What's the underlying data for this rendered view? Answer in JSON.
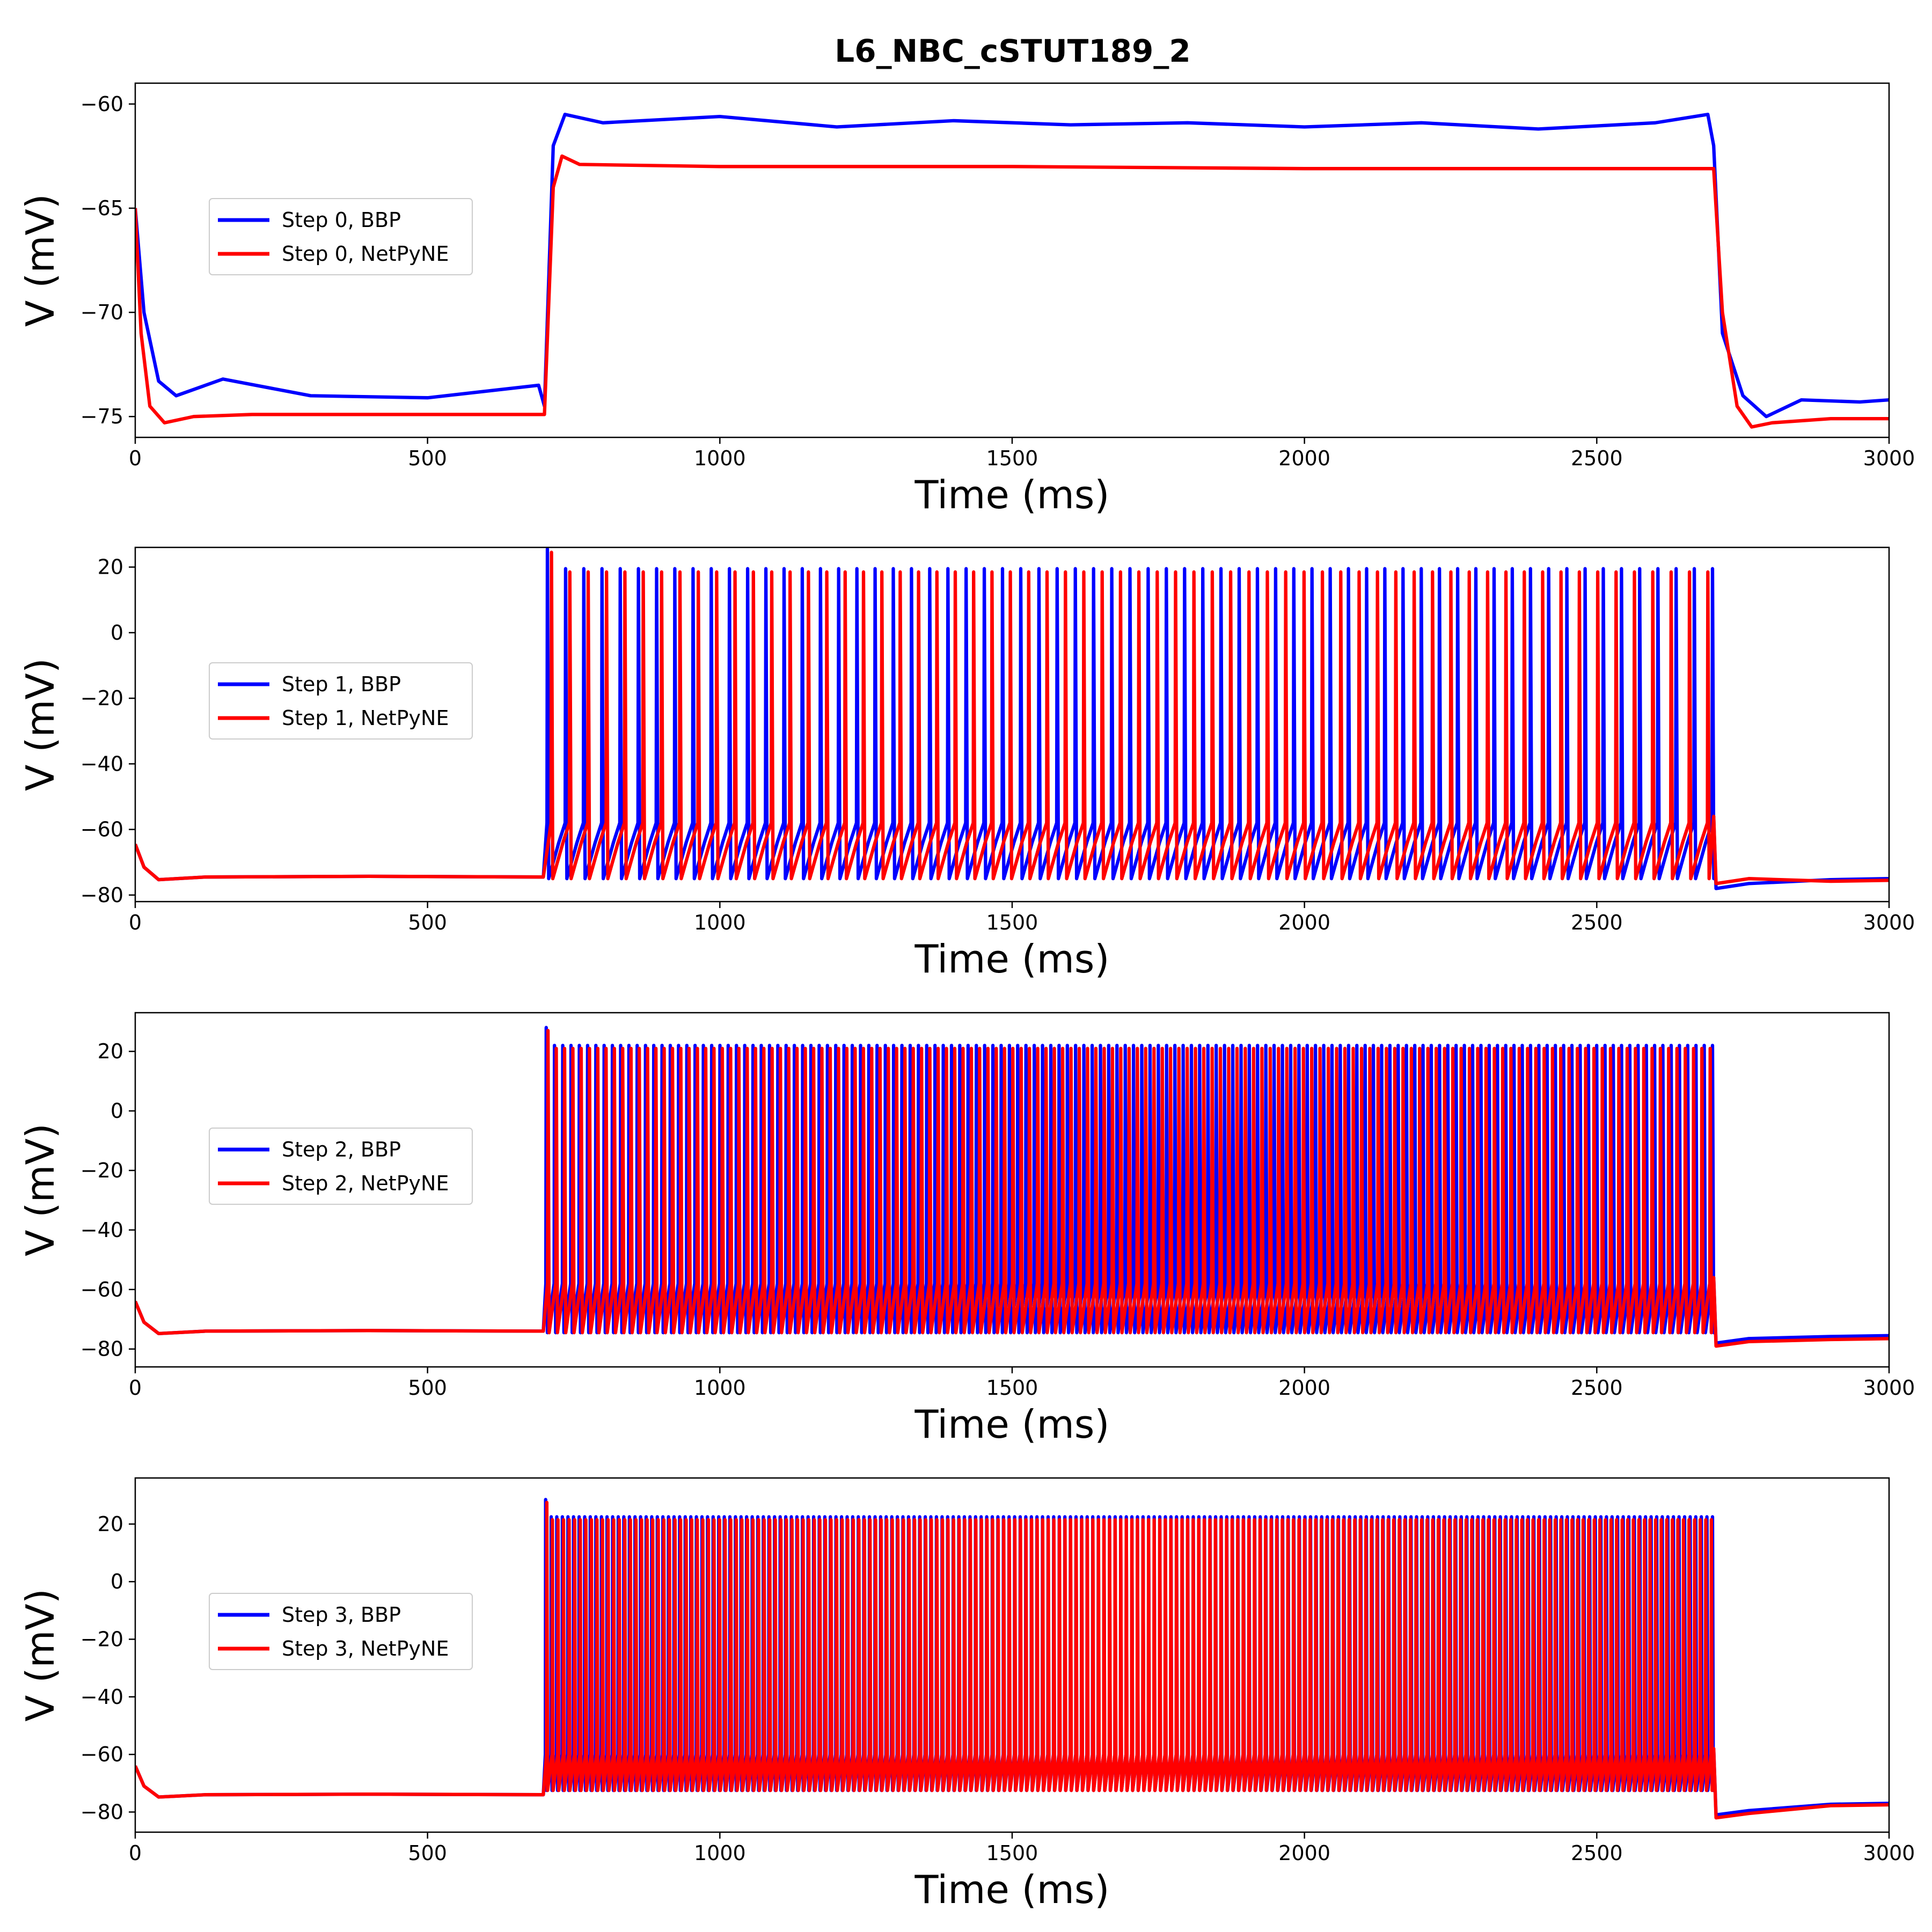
{
  "figure": {
    "title": "L6_NBC_cSTUT189_2"
  },
  "colors": {
    "bbp": "#0000ff",
    "netpyne": "#ff0000"
  },
  "chart_data": [
    {
      "type": "line",
      "xlabel": "Time (ms)",
      "ylabel": "V (mV)",
      "xlim": [
        0,
        3000
      ],
      "ylim": [
        -76,
        -59
      ],
      "xticks": [
        0,
        500,
        1000,
        1500,
        2000,
        2500,
        3000
      ],
      "yticks": [
        -75,
        -70,
        -65,
        -60
      ],
      "legend_position": "center-left",
      "series": [
        {
          "name": "Step 0, BBP",
          "color": "#0000ff",
          "linewidth": 3,
          "x": [
            0,
            15,
            40,
            70,
            150,
            300,
            500,
            690,
            700,
            715,
            735,
            800,
            1000,
            1200,
            1400,
            1600,
            1800,
            2000,
            2200,
            2400,
            2600,
            2690,
            2700,
            2715,
            2750,
            2790,
            2850,
            2950,
            3000
          ],
          "y": [
            -65,
            -70,
            -73.3,
            -74,
            -73.2,
            -74,
            -74.1,
            -73.5,
            -74.5,
            -62,
            -60.5,
            -60.9,
            -60.6,
            -61.1,
            -60.8,
            -61.0,
            -60.9,
            -61.1,
            -60.9,
            -61.2,
            -60.9,
            -60.5,
            -62,
            -71,
            -74,
            -75,
            -74.2,
            -74.3,
            -74.2
          ]
        },
        {
          "name": "Step 0, NetPyNE",
          "color": "#ff0000",
          "linewidth": 3,
          "x": [
            0,
            10,
            25,
            50,
            100,
            200,
            400,
            698,
            700,
            715,
            730,
            760,
            1000,
            1500,
            2000,
            2500,
            2698,
            2700,
            2715,
            2740,
            2765,
            2800,
            2900,
            3000
          ],
          "y": [
            -65,
            -71,
            -74.5,
            -75.3,
            -75.0,
            -74.9,
            -74.9,
            -74.9,
            -74.9,
            -64,
            -62.5,
            -62.9,
            -63.0,
            -63.0,
            -63.1,
            -63.1,
            -63.1,
            -63.1,
            -70,
            -74.5,
            -75.5,
            -75.3,
            -75.1,
            -75.1
          ]
        }
      ],
      "spiking": null
    },
    {
      "type": "line",
      "xlabel": "Time (ms)",
      "ylabel": "V (mV)",
      "xlim": [
        0,
        3000
      ],
      "ylim": [
        -82,
        26
      ],
      "xticks": [
        0,
        500,
        1000,
        1500,
        2000,
        2500,
        3000
      ],
      "yticks": [
        -80,
        -60,
        -40,
        -20,
        0,
        20
      ],
      "legend_position": "center-left",
      "series": [
        {
          "name": "Step 1, BBP",
          "color": "#0000ff",
          "linewidth": 3
        },
        {
          "name": "Step 1, NetPyNE",
          "color": "#ff0000",
          "linewidth": 3
        }
      ],
      "spiking": {
        "onset": 700,
        "offset": 2700,
        "rest": -74.5,
        "trough": -75,
        "reset": -58,
        "peak": 20,
        "bbp": {
          "count": 65,
          "first": 705,
          "last": 2698,
          "peak": 19.5,
          "after": -78,
          "end": -75
        },
        "netpyne": {
          "count": 64,
          "first": 712,
          "last": 2690,
          "peak": 18.5,
          "after": -76.5,
          "end": -75.5
        }
      }
    },
    {
      "type": "line",
      "xlabel": "Time (ms)",
      "ylabel": "V (mV)",
      "xlim": [
        0,
        3000
      ],
      "ylim": [
        -86,
        33
      ],
      "xticks": [
        0,
        500,
        1000,
        1500,
        2000,
        2500,
        3000
      ],
      "yticks": [
        -80,
        -60,
        -40,
        -20,
        0,
        20
      ],
      "legend_position": "center-left",
      "series": [
        {
          "name": "Step 2, BBP",
          "color": "#0000ff",
          "linewidth": 3
        },
        {
          "name": "Step 2, NetPyNE",
          "color": "#ff0000",
          "linewidth": 3
        }
      ],
      "spiking": {
        "onset": 700,
        "offset": 2700,
        "rest": -74,
        "trough": -74.5,
        "reset": -58,
        "peak": 22,
        "bbp": {
          "count": 142,
          "first": 703,
          "last": 2698,
          "peak": 22,
          "after": -78,
          "end": -75.5
        },
        "netpyne": {
          "count": 141,
          "first": 706,
          "last": 2694,
          "peak": 21,
          "after": -79,
          "end": -76.5
        }
      }
    },
    {
      "type": "line",
      "xlabel": "Time (ms)",
      "ylabel": "V (mV)",
      "xlim": [
        0,
        3000
      ],
      "ylim": [
        -87,
        36
      ],
      "xticks": [
        0,
        500,
        1000,
        1500,
        2000,
        2500,
        3000
      ],
      "yticks": [
        -80,
        -60,
        -40,
        -20,
        0,
        20
      ],
      "legend_position": "center-left",
      "series": [
        {
          "name": "Step 3, BBP",
          "color": "#0000ff",
          "linewidth": 3
        },
        {
          "name": "Step 3, NetPyNE",
          "color": "#ff0000",
          "linewidth": 3
        }
      ],
      "spiking": {
        "onset": 700,
        "offset": 2700,
        "rest": -74,
        "trough": -72.5,
        "reset": -60,
        "peak": 22,
        "bbp": {
          "count": 210,
          "first": 702,
          "last": 2698,
          "peak": 22.5,
          "after": -81,
          "end": -77
        },
        "netpyne": {
          "count": 210,
          "first": 704,
          "last": 2696,
          "peak": 21.5,
          "after": -82,
          "end": -77.5
        }
      }
    }
  ]
}
